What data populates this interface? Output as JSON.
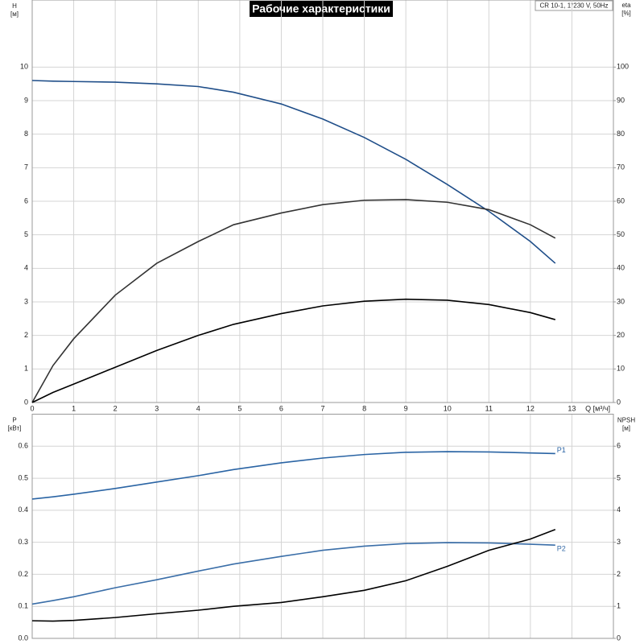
{
  "title": "Рабочие характеристики",
  "model": "CR 10-1, 1*230 V, 50Hz",
  "chart_data": [
    {
      "type": "line",
      "x_label": "Q [м³/ч]",
      "y_label": [
        "H",
        "[м]"
      ],
      "y2_label": [
        "eta",
        "[%]"
      ],
      "x": [
        0,
        0.5,
        1,
        2,
        3,
        4,
        4.85,
        6,
        7,
        8,
        9,
        10,
        11,
        12,
        12.6
      ],
      "xlim": [
        0,
        14
      ],
      "xticks": [
        0,
        1,
        2,
        3,
        4,
        5,
        6,
        7,
        8,
        9,
        10,
        11,
        12,
        13
      ],
      "ylim": [
        0,
        12
      ],
      "yticks": [
        0,
        1,
        2,
        3,
        4,
        5,
        6,
        7,
        8,
        9,
        10
      ],
      "y2lim": [
        0,
        120
      ],
      "y2ticks": [
        0,
        10,
        20,
        30,
        40,
        50,
        60,
        70,
        80,
        90,
        100
      ],
      "grid": true,
      "series": [
        {
          "color": "#1f4e89",
          "values": [
            9.6,
            9.58,
            9.57,
            9.55,
            9.5,
            9.42,
            9.25,
            8.9,
            8.45,
            7.9,
            7.25,
            6.5,
            5.7,
            4.8,
            4.15
          ]
        },
        {
          "color": "#333333",
          "axis": "y2",
          "values": [
            0,
            11,
            19,
            32,
            41.5,
            48,
            53,
            56.5,
            59,
            60.3,
            60.5,
            59.7,
            57.5,
            53,
            49
          ]
        },
        {
          "color": "#000000",
          "axis": "y2",
          "values": [
            0,
            3,
            5.5,
            10.5,
            15.5,
            20,
            23.3,
            26.5,
            28.8,
            30.2,
            30.8,
            30.5,
            29.2,
            26.8,
            24.7
          ]
        }
      ]
    },
    {
      "type": "line",
      "y_label": [
        "P",
        "[кВт]"
      ],
      "y2_label": [
        "NPSH",
        "[м]"
      ],
      "x": [
        0,
        0.5,
        1,
        2,
        3,
        4,
        4.85,
        6,
        7,
        8,
        9,
        10,
        11,
        12,
        12.6
      ],
      "xlim": [
        0,
        14
      ],
      "xticks": [
        0,
        1,
        2,
        3,
        4,
        5,
        6,
        7,
        8,
        9,
        10,
        11,
        12,
        13
      ],
      "ylim": [
        0,
        0.7
      ],
      "yticks": [
        {
          "value": 0,
          "label": "0.0"
        },
        0.1,
        0.2,
        0.3,
        0.4,
        0.5,
        0.6
      ],
      "y2lim": [
        0,
        7
      ],
      "y2ticks": [
        0,
        1,
        2,
        3,
        4,
        5,
        6
      ],
      "grid": true,
      "series": [
        {
          "name": "P1",
          "color": "#2a64a4",
          "values": [
            0.435,
            0.442,
            0.45,
            0.468,
            0.488,
            0.508,
            0.527,
            0.548,
            0.563,
            0.574,
            0.581,
            0.583,
            0.582,
            0.579,
            0.577
          ]
        },
        {
          "name": "P2",
          "color": "#3a6ea8",
          "values": [
            0.107,
            0.118,
            0.13,
            0.158,
            0.183,
            0.21,
            0.232,
            0.256,
            0.275,
            0.288,
            0.296,
            0.299,
            0.298,
            0.294,
            0.291
          ]
        },
        {
          "color": "#000000",
          "axis": "y2",
          "values": [
            0.55,
            0.54,
            0.56,
            0.65,
            0.77,
            0.88,
            1.0,
            1.12,
            1.3,
            1.5,
            1.8,
            2.25,
            2.75,
            3.1,
            3.4
          ]
        }
      ]
    }
  ]
}
